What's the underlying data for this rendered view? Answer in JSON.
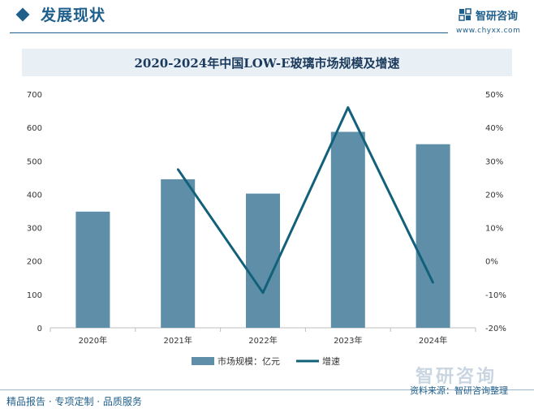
{
  "header": {
    "section_title": "发展现状",
    "logo_name": "智研咨询",
    "logo_url": "www.chyxx.com"
  },
  "colors": {
    "brand": "#1f5f8b",
    "bar": "#5f8fa8",
    "line": "#12607a",
    "title_band": "#e8f0f6"
  },
  "chart_data": {
    "type": "bar",
    "title": "2020-2024年中国LOW-E玻璃市场规模及增速",
    "categories": [
      "2020年",
      "2021年",
      "2022年",
      "2023年",
      "2024年"
    ],
    "series": [
      {
        "name": "市场规模：亿元",
        "type": "bar",
        "axis": "left",
        "values": [
          348,
          445,
          402,
          587,
          550
        ]
      },
      {
        "name": "增速",
        "type": "line",
        "axis": "right",
        "values": [
          null,
          27.5,
          -9.5,
          46,
          -6.5
        ]
      }
    ],
    "y_left": {
      "min": 0,
      "max": 700,
      "ticks": [
        "0",
        "100",
        "200",
        "300",
        "400",
        "500",
        "600",
        "700"
      ]
    },
    "y_right": {
      "min": -20,
      "max": 50,
      "ticks": [
        "-20%",
        "-10%",
        "0%",
        "10%",
        "20%",
        "30%",
        "40%",
        "50%"
      ]
    },
    "legend_position": "bottom",
    "grid": false
  },
  "footer": {
    "left_text": "精品报告 · 专项定制 · 品质服务",
    "right_logo": "智研咨询",
    "source": "资料来源：智研咨询整理"
  }
}
